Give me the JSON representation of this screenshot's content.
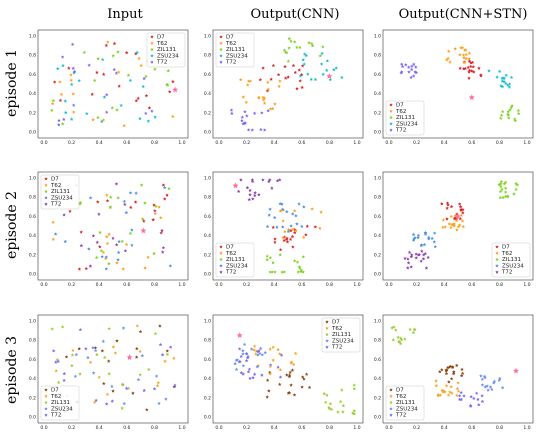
{
  "figure": {
    "column_titles": [
      "Input",
      "Output(CNN)",
      "Output(CNN+STN)"
    ],
    "row_labels": [
      "episode 1",
      "episode 2",
      "episode 3"
    ]
  },
  "classes": [
    "D7",
    "T62",
    "ZIL131",
    "ZSU234",
    "T72"
  ],
  "colors": {
    "D7": "#d62728",
    "T62": "#ff9f1c",
    "ZIL131": "#7ed321",
    "ZSU234": "#17becf",
    "T72": "#7b68ee"
  },
  "row_colors": [
    {
      "D7": "#d62728",
      "T62": "#ff9f1c",
      "ZIL131": "#7ed321",
      "ZSU234": "#17becf",
      "T72": "#7b68ee"
    },
    {
      "D7": "#d62728",
      "T62": "#ff9f1c",
      "ZIL131": "#7ed321",
      "ZSU234": "#4a90e2",
      "T72": "#8e44ad"
    },
    {
      "D7": "#8b4513",
      "T62": "#f5a623",
      "ZIL131": "#9acd32",
      "ZSU234": "#6a8ff0",
      "T72": "#7b68ee"
    }
  ],
  "chart_data": [
    {
      "id": "r1c1",
      "row": 0,
      "col": 0,
      "type": "scatter",
      "xlim": [
        0,
        1
      ],
      "ylim": [
        0,
        1
      ],
      "xticks": [
        "0.0",
        "0.2",
        "0.4",
        "0.6",
        "0.8",
        "1.0"
      ],
      "yticks": [
        "0.0",
        "0.2",
        "0.4",
        "0.6",
        "0.8",
        "1.0"
      ],
      "legend": "top-right",
      "clusters": "mixed",
      "star": [
        0.95,
        0.44
      ]
    },
    {
      "id": "r1c2",
      "row": 0,
      "col": 1,
      "type": "scatter",
      "xlim": [
        0,
        1
      ],
      "ylim": [
        0,
        1
      ],
      "xticks": [
        "0.0",
        "0.2",
        "0.4",
        "0.6",
        "0.8",
        "1.0"
      ],
      "yticks": [
        "0.0",
        "0.2",
        "0.4",
        "0.6",
        "0.8",
        "1.0"
      ],
      "legend": "top-left",
      "clusters": "partial",
      "star": [
        0.8,
        0.58
      ]
    },
    {
      "id": "r1c3",
      "row": 0,
      "col": 2,
      "type": "scatter",
      "xlim": [
        0,
        1
      ],
      "ylim": [
        0,
        1
      ],
      "xticks": [
        "0.0",
        "0.2",
        "0.4",
        "0.6",
        "0.8",
        "1.0"
      ],
      "yticks": [
        "0.0",
        "0.2",
        "0.4",
        "0.6",
        "0.8",
        "1.0"
      ],
      "legend": "bottom-left",
      "clusters": "separated",
      "star": [
        0.6,
        0.36
      ]
    },
    {
      "id": "r2c1",
      "row": 1,
      "col": 0,
      "type": "scatter",
      "xlim": [
        0,
        1
      ],
      "ylim": [
        0,
        1
      ],
      "xticks": [
        "0.0",
        "0.2",
        "0.4",
        "0.6",
        "0.8",
        "1.0"
      ],
      "yticks": [
        "0.0",
        "0.2",
        "0.4",
        "0.6",
        "0.8",
        "1.0"
      ],
      "legend": "top-left",
      "clusters": "mixed",
      "star": [
        0.72,
        0.45
      ]
    },
    {
      "id": "r2c2",
      "row": 1,
      "col": 1,
      "type": "scatter",
      "xlim": [
        0,
        1
      ],
      "ylim": [
        0,
        1
      ],
      "xticks": [
        "0.0",
        "0.2",
        "0.4",
        "0.6",
        "0.8",
        "1.0"
      ],
      "yticks": [
        "0.0",
        "0.2",
        "0.4",
        "0.6",
        "0.8",
        "1.0"
      ],
      "legend": "bottom-left",
      "clusters": "partial",
      "star": [
        0.12,
        0.92
      ]
    },
    {
      "id": "r2c3",
      "row": 1,
      "col": 2,
      "type": "scatter",
      "xlim": [
        0,
        1
      ],
      "ylim": [
        0,
        1
      ],
      "xticks": [
        "0.0",
        "0.2",
        "0.4",
        "0.6",
        "0.8",
        "1.0"
      ],
      "yticks": [
        "0.0",
        "0.2",
        "0.4",
        "0.6",
        "0.8",
        "1.0"
      ],
      "legend": "bottom-right",
      "clusters": "separated",
      "star": [
        0.5,
        0.6
      ]
    },
    {
      "id": "r3c1",
      "row": 2,
      "col": 0,
      "type": "scatter",
      "xlim": [
        0,
        1
      ],
      "ylim": [
        0,
        1
      ],
      "xticks": [
        "0.0",
        "0.2",
        "0.4",
        "0.6",
        "0.8",
        "1.0"
      ],
      "yticks": [
        "0.0",
        "0.2",
        "0.4",
        "0.6",
        "0.8",
        "1.0"
      ],
      "legend": "bottom-left",
      "clusters": "mixed",
      "star": [
        0.62,
        0.62
      ]
    },
    {
      "id": "r3c2",
      "row": 2,
      "col": 1,
      "type": "scatter",
      "xlim": [
        0,
        1
      ],
      "ylim": [
        0,
        1
      ],
      "xticks": [
        "0.0",
        "0.2",
        "0.4",
        "0.6",
        "0.8",
        "1.0"
      ],
      "yticks": [
        "0.0",
        "0.2",
        "0.4",
        "0.6",
        "0.8",
        "1.0"
      ],
      "legend": "top-right",
      "clusters": "partial",
      "star": [
        0.15,
        0.85
      ]
    },
    {
      "id": "r3c3",
      "row": 2,
      "col": 2,
      "type": "scatter",
      "xlim": [
        0,
        1
      ],
      "ylim": [
        0,
        1
      ],
      "xticks": [
        "0.0",
        "0.2",
        "0.4",
        "0.6",
        "0.8",
        "1.0"
      ],
      "yticks": [
        "0.0",
        "0.2",
        "0.4",
        "0.6",
        "0.8",
        "1.0"
      ],
      "legend": "bottom-left",
      "clusters": "separated",
      "star": [
        0.92,
        0.48
      ]
    }
  ]
}
